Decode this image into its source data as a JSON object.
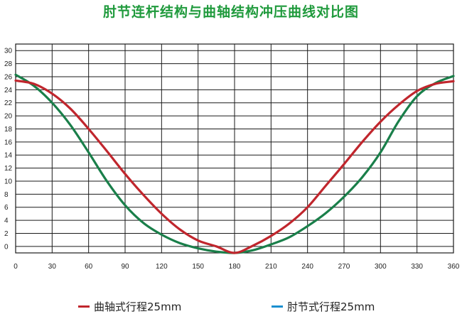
{
  "title": "肘节连杆结构与曲轴结构冲压曲线对比图",
  "colors": {
    "crank": "#c0262d",
    "toggle": "#1a7f4a",
    "toggle_legend": "#1a8fd0",
    "grid": "#1a1a1a",
    "title": "#1f9a3c"
  },
  "legend": [
    {
      "label": "曲轴式行程25mm"
    },
    {
      "label": "肘节式行程25mm"
    }
  ],
  "chart_data": {
    "type": "line",
    "title": "肘节连杆结构与曲轴结构冲压曲线对比图",
    "xlabel": "",
    "ylabel": "",
    "xlim": [
      0,
      360
    ],
    "ylim": [
      -1,
      31
    ],
    "x_ticks": [
      0,
      30,
      60,
      90,
      120,
      150,
      180,
      210,
      240,
      270,
      300,
      330,
      360
    ],
    "y_ticks": [
      0,
      2,
      4,
      6,
      8,
      10,
      12,
      14,
      16,
      18,
      20,
      22,
      24,
      26,
      28,
      30
    ],
    "grid": true,
    "legend_position": "bottom",
    "series": [
      {
        "name": "曲轴式行程25mm",
        "x": [
          0,
          15,
          30,
          45,
          60,
          75,
          90,
          105,
          120,
          135,
          150,
          165,
          180,
          195,
          210,
          225,
          240,
          255,
          270,
          285,
          300,
          315,
          330,
          345,
          360
        ],
        "values": [
          25.4,
          24.9,
          23.4,
          21.1,
          18.0,
          14.6,
          11.1,
          7.9,
          5.0,
          2.6,
          0.9,
          0.0,
          -1.0,
          0.1,
          1.6,
          3.5,
          6.0,
          9.3,
          12.6,
          16.0,
          19.1,
          21.7,
          23.8,
          24.9,
          25.3
        ]
      },
      {
        "name": "肘节式行程25mm",
        "x": [
          0,
          15,
          30,
          45,
          60,
          75,
          90,
          105,
          120,
          135,
          150,
          165,
          180,
          195,
          210,
          225,
          240,
          255,
          270,
          285,
          300,
          315,
          330,
          345,
          360
        ],
        "values": [
          26.3,
          24.6,
          22.0,
          18.6,
          14.4,
          10.0,
          6.3,
          3.6,
          1.8,
          0.5,
          -0.3,
          -0.8,
          -1.0,
          -0.6,
          0.3,
          1.4,
          3.1,
          5.1,
          7.6,
          10.6,
          14.4,
          19.2,
          23.0,
          25.0,
          26.1
        ]
      }
    ]
  }
}
